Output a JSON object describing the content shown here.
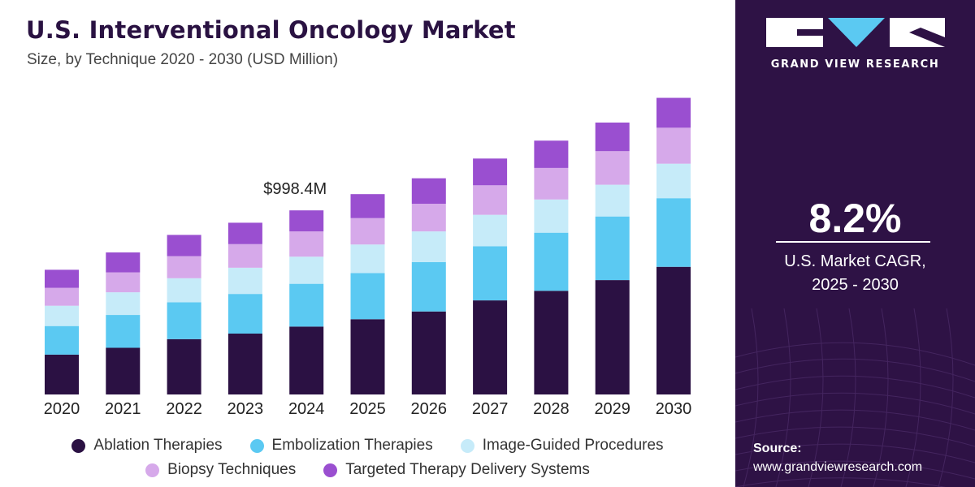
{
  "header": {
    "title": "U.S. Interventional Oncology Market",
    "subtitle": "Size, by Technique 2020 - 2030 (USD Million)"
  },
  "chart_data": {
    "type": "bar",
    "stacked": true,
    "categories": [
      "2020",
      "2021",
      "2022",
      "2023",
      "2024",
      "2025",
      "2026",
      "2027",
      "2028",
      "2029",
      "2030"
    ],
    "series": [
      {
        "name": "Ablation Therapies",
        "color": "#2b1143",
        "values": [
          216,
          253,
          300,
          330,
          368,
          408,
          450,
          510,
          562,
          620,
          692
        ]
      },
      {
        "name": "Embolization Therapies",
        "color": "#5bc9f2",
        "values": [
          155,
          178,
          200,
          215,
          232,
          250,
          268,
          293,
          315,
          345,
          372
        ]
      },
      {
        "name": "Image-Guided Procedures",
        "color": "#c6ebf9",
        "values": [
          110,
          123,
          130,
          142,
          147,
          155,
          166,
          171,
          180,
          172,
          187
        ]
      },
      {
        "name": "Biopsy Techniques",
        "color": "#d6a9ea",
        "values": [
          97,
          108,
          120,
          128,
          137,
          143,
          150,
          160,
          171,
          182,
          195
        ]
      },
      {
        "name": "Targeted Therapy Delivery Systems",
        "color": "#9a4fd0",
        "values": [
          98,
          108,
          115,
          116,
          114,
          130,
          138,
          145,
          148,
          155,
          162
        ]
      }
    ],
    "annotations": [
      {
        "category": "2024",
        "text": "$998.4M"
      }
    ],
    "ylim": [
      0,
      1650
    ],
    "grid": false,
    "legend_position": "bottom"
  },
  "brand": {
    "name": "GRAND VIEW RESEARCH",
    "colors": {
      "panel": "#2e1245",
      "accent": "#5bc9f2",
      "text": "#ffffff"
    }
  },
  "cagr": {
    "value": "8.2%",
    "label_line1": "U.S. Market CAGR,",
    "label_line2": "2025 - 2030"
  },
  "source": {
    "label": "Source:",
    "url": "www.grandviewresearch.com"
  }
}
